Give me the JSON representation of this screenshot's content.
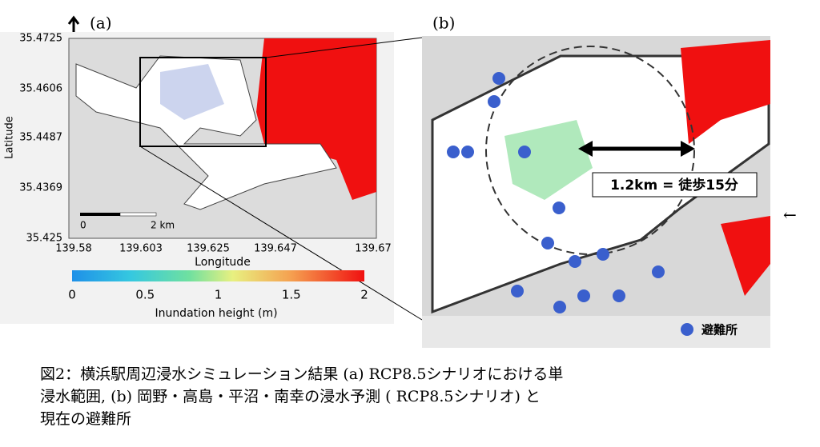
{
  "panel_a": {
    "label": "(a)",
    "y_axis": {
      "title": "Latitude",
      "ticks": [
        "35.4725",
        "35.4606",
        "35.4487",
        "35.4369",
        "35.425"
      ]
    },
    "x_axis": {
      "title": "Longitude",
      "ticks": [
        "139.58",
        "139.603",
        "139.625",
        "139.647",
        "139.67"
      ]
    },
    "scale_bar": {
      "start": "0",
      "end": "2 km"
    },
    "colorbar": {
      "title": "Inundation height (m)",
      "ticks": [
        "0",
        "0.5",
        "1",
        "1.5",
        "2"
      ]
    }
  },
  "panel_b": {
    "label": "(b)",
    "annotation": "1.2km = 徒歩15分",
    "legend": "避難所"
  },
  "side_arrow": "←",
  "caption": [
    "図2：横浜駅周辺浸水シミュレーション結果 (a) RCP8.5シナリオにおける単",
    "浸水範囲, (b) 岡野・高島・平沼・南幸の浸水予測 ( RCP8.5シナリオ) と",
    "現在の避難所"
  ]
}
